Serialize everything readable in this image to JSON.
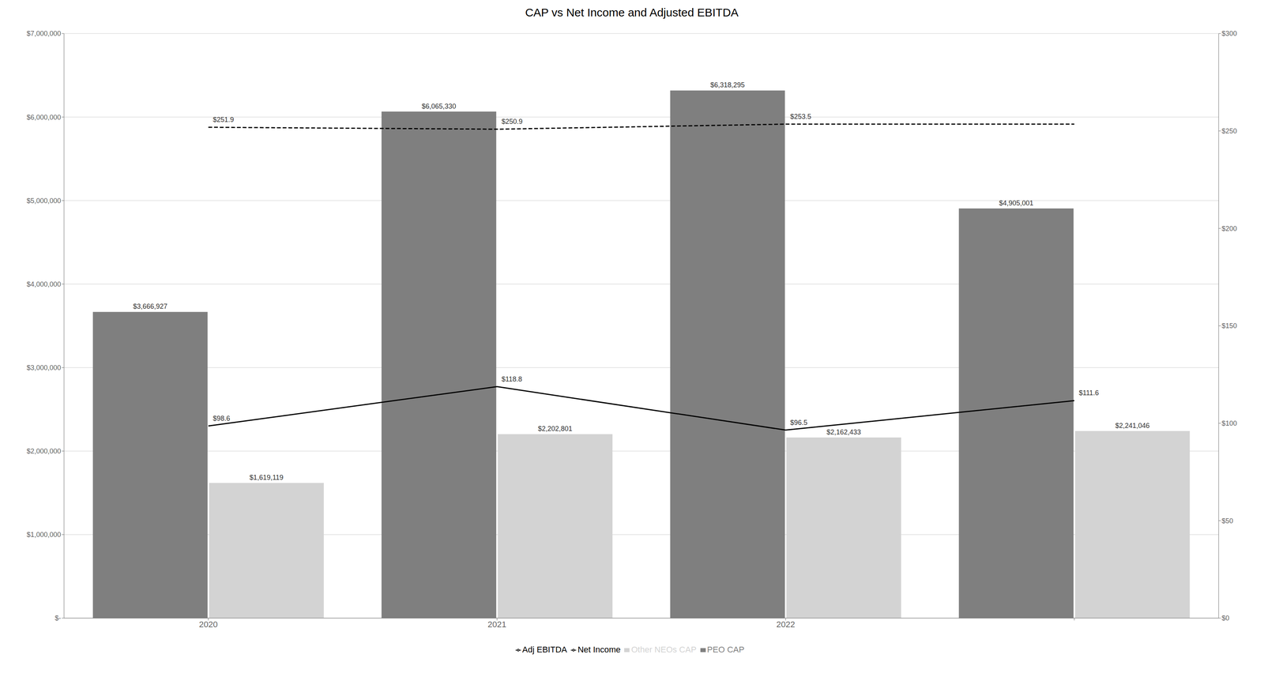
{
  "chart_data": {
    "type": "bar",
    "title": "CAP vs Net Income and Adjusted EBITDA",
    "categories": [
      "2020",
      "2021",
      "2022",
      null
    ],
    "ylim": [
      0,
      7000000
    ],
    "yticks": [
      {
        "value": 0,
        "label": "$-"
      },
      {
        "value": 1000000,
        "label": "$1,000,000"
      },
      {
        "value": 2000000,
        "label": "$2,000,000"
      },
      {
        "value": 3000000,
        "label": "$3,000,000"
      },
      {
        "value": 4000000,
        "label": "$4,000,000"
      },
      {
        "value": 5000000,
        "label": "$5,000,000"
      },
      {
        "value": 6000000,
        "label": "$6,000,000"
      },
      {
        "value": 7000000,
        "label": "$7,000,000"
      }
    ],
    "y2lim": [
      0,
      300
    ],
    "y2ticks": [
      {
        "value": 0,
        "label": "$0"
      },
      {
        "value": 50,
        "label": "$50"
      },
      {
        "value": 100,
        "label": "$100"
      },
      {
        "value": 150,
        "label": "$150"
      },
      {
        "value": 200,
        "label": "$200"
      },
      {
        "value": 250,
        "label": "$250"
      },
      {
        "value": 300,
        "label": "$300"
      }
    ],
    "grid": true,
    "legend": "bottom",
    "data_labels": true,
    "series": [
      {
        "name": "PEO CAP",
        "type": "bar",
        "color": "#7f7f7f",
        "values": [
          3666927,
          6065330,
          6318295,
          4905001
        ],
        "value_labels": [
          "$3,666,927",
          "$6,065,330",
          "$6,318,295",
          "$4,905,001"
        ]
      },
      {
        "name": "Other NEOs CAP",
        "type": "bar",
        "color": "#d3d3d3",
        "values": [
          1619119,
          2202801,
          2162433,
          2241046
        ],
        "value_labels": [
          "$1,619,119",
          "$2,202,801",
          "$2,162,433",
          "$2,241,046"
        ]
      },
      {
        "name": "Net Income",
        "type": "line",
        "axis": "y2",
        "color": "#000000",
        "line_style": "solid",
        "values": [
          98.6,
          118.8,
          96.5,
          111.6
        ],
        "value_labels": [
          "$98.6",
          "$118.8",
          "$96.5",
          "$111.6"
        ]
      },
      {
        "name": "Adj EBITDA",
        "type": "line",
        "axis": "y2",
        "color": "#000000",
        "line_style": "dashed",
        "values": [
          251.9,
          250.9,
          253.5,
          253.5
        ],
        "value_labels": [
          "$251.9",
          "$250.9",
          "$253.5",
          null
        ]
      }
    ]
  }
}
